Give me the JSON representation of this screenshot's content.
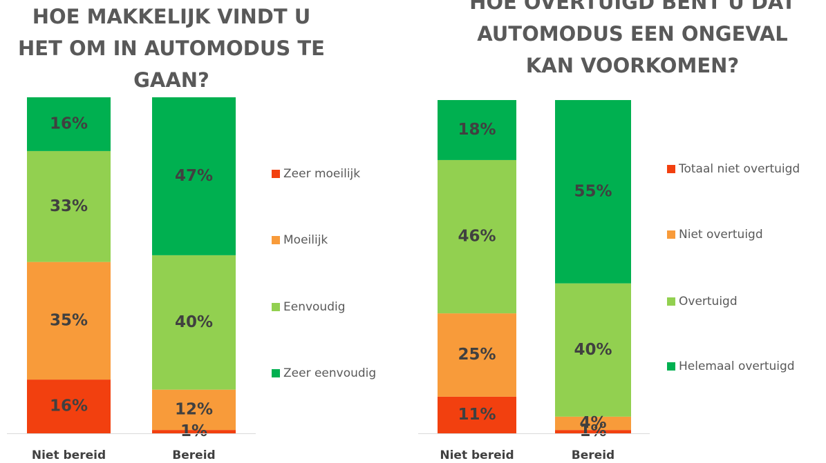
{
  "chart_data": [
    {
      "type": "bar",
      "stacked": true,
      "title": "HOE MAKKELIJK VINDT U HET OM IN AUTOMODUS TE GAAN?",
      "categories": [
        "Niet bereid",
        "Bereid"
      ],
      "ylim": [
        0,
        100
      ],
      "series": [
        {
          "name": "Zeer moeilijk",
          "color": "#f2400f",
          "values": [
            16,
            1
          ],
          "value_labels": [
            "16%",
            "1%"
          ]
        },
        {
          "name": "Moeilijk",
          "color": "#f89b3a",
          "values": [
            35,
            12
          ],
          "value_labels": [
            "35%",
            "12%"
          ]
        },
        {
          "name": "Eenvoudig",
          "color": "#92d050",
          "values": [
            33,
            40
          ],
          "value_labels": [
            "33%",
            "40%"
          ]
        },
        {
          "name": "Zeer eenvoudig",
          "color": "#00b050",
          "values": [
            16,
            47
          ],
          "value_labels": [
            "16%",
            "47%"
          ]
        }
      ]
    },
    {
      "type": "bar",
      "stacked": true,
      "title": "HOE OVERTUIGD BENT U DAT AUTOMODUS EEN ONGEVAL KAN VOORKOMEN?",
      "categories": [
        "Niet bereid",
        "Bereid"
      ],
      "ylim": [
        0,
        100
      ],
      "series": [
        {
          "name": "Totaal niet overtuigd",
          "color": "#f2400f",
          "values": [
            11,
            1
          ],
          "value_labels": [
            "11%",
            "1%"
          ]
        },
        {
          "name": "Niet overtuigd",
          "color": "#f89b3a",
          "values": [
            25,
            4
          ],
          "value_labels": [
            "25%",
            "4%"
          ]
        },
        {
          "name": "Overtuigd",
          "color": "#92d050",
          "values": [
            46,
            40
          ],
          "value_labels": [
            "46%",
            "40%"
          ]
        },
        {
          "name": "Helemaal overtuigd",
          "color": "#00b050",
          "values": [
            18,
            55
          ],
          "value_labels": [
            "18%",
            "55%"
          ]
        }
      ]
    }
  ]
}
